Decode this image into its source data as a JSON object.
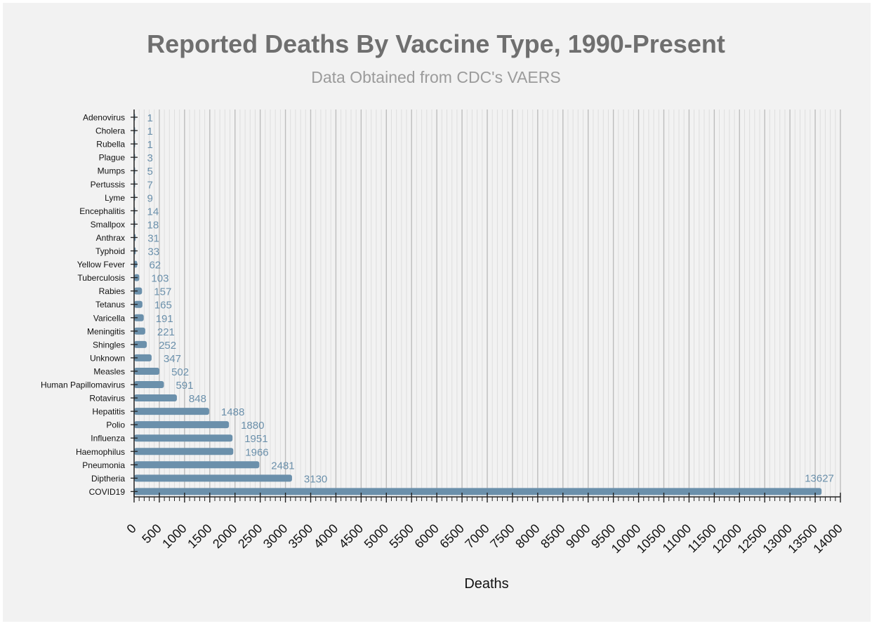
{
  "chart_data": {
    "type": "bar",
    "orientation": "horizontal",
    "title": "Reported Deaths By Vaccine Type, 1990-Present",
    "subtitle": "Data Obtained from CDC's VAERS",
    "xlabel": "Deaths",
    "ylabel": "",
    "xlim": [
      0,
      14000
    ],
    "major_tick_step": 500,
    "minor_tick_step": 100,
    "grid": true,
    "categories": [
      "Adenovirus",
      "Cholera",
      "Rubella",
      "Plague",
      "Mumps",
      "Pertussis",
      "Lyme",
      "Encephalitis",
      "Smallpox",
      "Anthrax",
      "Typhoid",
      "Yellow Fever",
      "Tuberculosis",
      "Rabies",
      "Tetanus",
      "Varicella",
      "Meningitis",
      "Shingles",
      "Unknown",
      "Measles",
      "Human Papillomavirus",
      "Rotavirus",
      "Hepatitis",
      "Polio",
      "Influenza",
      "Haemophilus",
      "Pneumonia",
      "Diptheria",
      "COVID19"
    ],
    "values": [
      1,
      1,
      1,
      3,
      5,
      7,
      9,
      14,
      18,
      31,
      33,
      62,
      103,
      157,
      165,
      191,
      221,
      252,
      347,
      502,
      591,
      848,
      1488,
      1880,
      1951,
      1966,
      2481,
      3130,
      13627
    ],
    "bar_color": "#6b90ab",
    "label_color": "#6b90ab"
  }
}
